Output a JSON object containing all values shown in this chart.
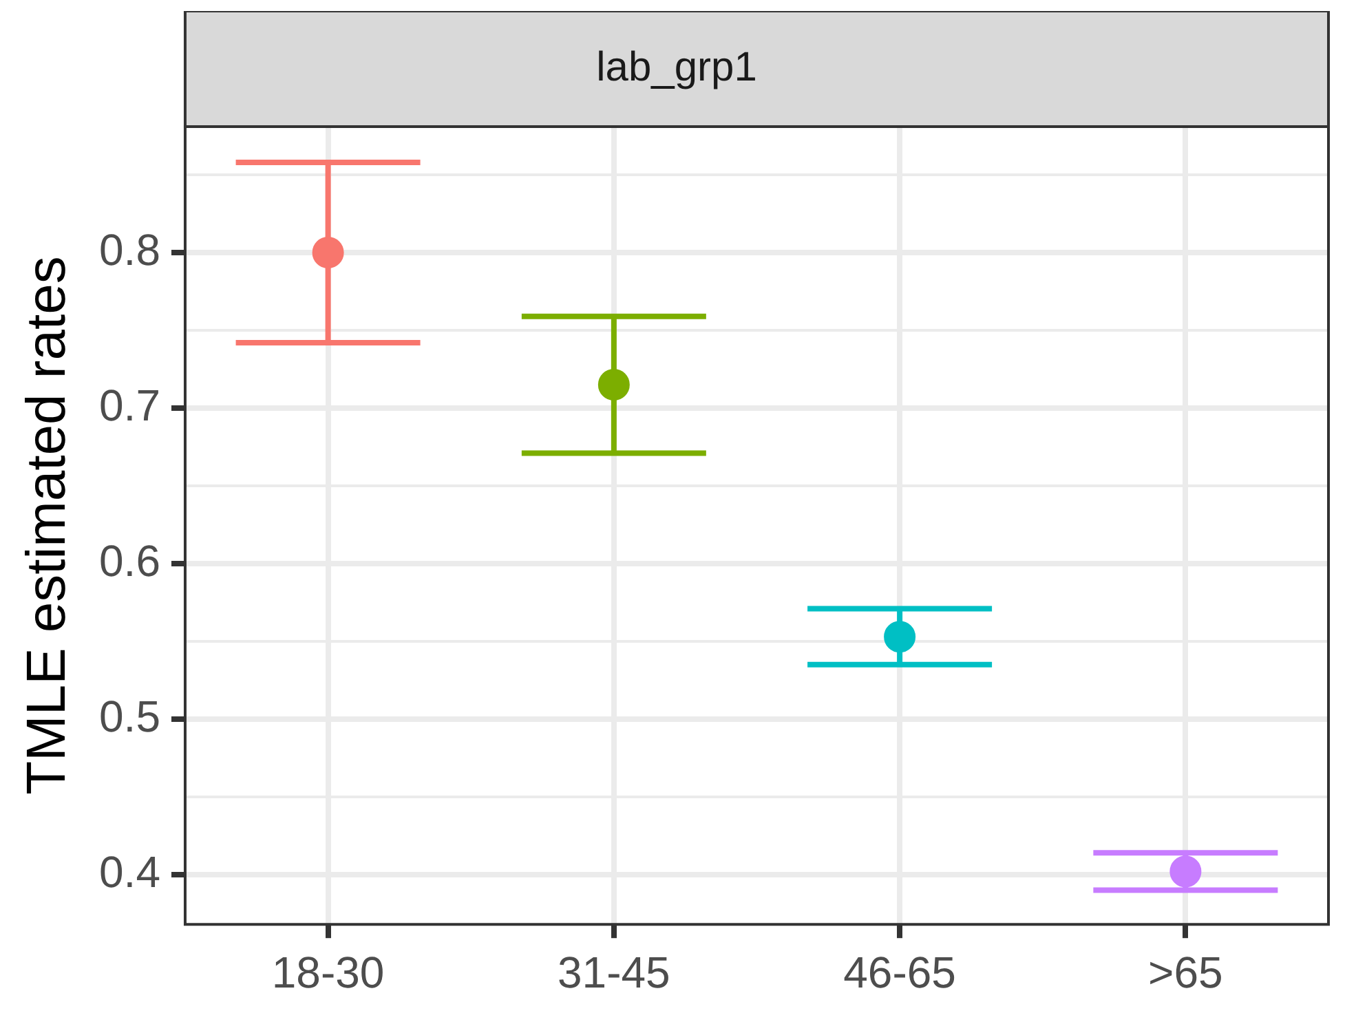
{
  "chart_data": {
    "type": "scatter",
    "title": "lab_grp1",
    "ylabel": "TMLE estimated rates",
    "categories": [
      "18-30",
      "31-45",
      "46-65",
      ">65"
    ],
    "values": [
      0.8,
      0.715,
      0.553,
      0.402
    ],
    "errors": [
      0.058,
      0.044,
      0.018,
      0.012
    ],
    "colors": [
      "#f8766d",
      "#7cae00",
      "#00bfc4",
      "#c77cff"
    ],
    "ylim": [
      0.368,
      0.881
    ],
    "yticks": [
      {
        "value": 0.4,
        "label": "0.4"
      },
      {
        "value": 0.45,
        "label": null
      },
      {
        "value": 0.5,
        "label": "0.5"
      },
      {
        "value": 0.55,
        "label": null
      },
      {
        "value": 0.6,
        "label": "0.6"
      },
      {
        "value": 0.65,
        "label": null
      },
      {
        "value": 0.7,
        "label": "0.7"
      },
      {
        "value": 0.75,
        "label": null
      },
      {
        "value": 0.8,
        "label": "0.8"
      },
      {
        "value": 0.85,
        "label": null
      }
    ],
    "grid": true,
    "marker": "circle",
    "legend": false
  }
}
